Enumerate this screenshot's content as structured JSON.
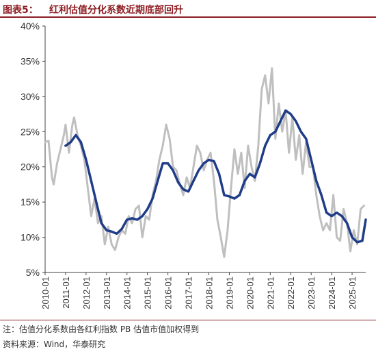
{
  "title": {
    "label": "图表5：",
    "text": "红利估值分化系数近期底部回升"
  },
  "footnotes": {
    "note": "注：估值分化系数由各红利指数 PB 估值市值加权得到",
    "source": "资料来源：Wind，华泰研究"
  },
  "chart_data": {
    "type": "line",
    "title": "红利估值分化系数近期底部回升",
    "xlabel": "",
    "ylabel": "",
    "ylim": [
      0.05,
      0.4
    ],
    "yticks": [
      "5%",
      "10%",
      "15%",
      "20%",
      "25%",
      "30%",
      "35%",
      "40%"
    ],
    "xticks": [
      "2010-01",
      "2011-01",
      "2012-01",
      "2013-01",
      "2014-01",
      "2015-01",
      "2016-01",
      "2017-01",
      "2018-01",
      "2019-01",
      "2020-01",
      "2021-01",
      "2022-01",
      "2023-01",
      "2024-01",
      "2025-01"
    ],
    "xrange": [
      "2010-01",
      "2025-09"
    ],
    "grid": false,
    "legend": "none",
    "series": [
      {
        "name": "",
        "color": "#bfbfbf",
        "points": [
          [
            "2010-01",
            0.235
          ],
          [
            "2010-03",
            0.237
          ],
          [
            "2010-05",
            0.185
          ],
          [
            "2010-06",
            0.175
          ],
          [
            "2010-08",
            0.205
          ],
          [
            "2010-10",
            0.225
          ],
          [
            "2010-12",
            0.245
          ],
          [
            "2011-01",
            0.26
          ],
          [
            "2011-03",
            0.22
          ],
          [
            "2011-05",
            0.26
          ],
          [
            "2011-06",
            0.27
          ],
          [
            "2011-08",
            0.245
          ],
          [
            "2011-10",
            0.23
          ],
          [
            "2011-12",
            0.21
          ],
          [
            "2012-02",
            0.17
          ],
          [
            "2012-04",
            0.13
          ],
          [
            "2012-06",
            0.155
          ],
          [
            "2012-08",
            0.12
          ],
          [
            "2012-10",
            0.13
          ],
          [
            "2012-12",
            0.09
          ],
          [
            "2013-02",
            0.115
          ],
          [
            "2013-04",
            0.09
          ],
          [
            "2013-06",
            0.082
          ],
          [
            "2013-08",
            0.1
          ],
          [
            "2013-10",
            0.11
          ],
          [
            "2013-12",
            0.105
          ],
          [
            "2014-02",
            0.13
          ],
          [
            "2014-04",
            0.12
          ],
          [
            "2014-06",
            0.14
          ],
          [
            "2014-08",
            0.145
          ],
          [
            "2014-10",
            0.1
          ],
          [
            "2014-12",
            0.13
          ],
          [
            "2015-02",
            0.125
          ],
          [
            "2015-04",
            0.16
          ],
          [
            "2015-06",
            0.18
          ],
          [
            "2015-08",
            0.21
          ],
          [
            "2015-10",
            0.23
          ],
          [
            "2015-12",
            0.26
          ],
          [
            "2016-02",
            0.24
          ],
          [
            "2016-04",
            0.2
          ],
          [
            "2016-06",
            0.195
          ],
          [
            "2016-08",
            0.175
          ],
          [
            "2016-10",
            0.16
          ],
          [
            "2016-12",
            0.185
          ],
          [
            "2017-02",
            0.17
          ],
          [
            "2017-04",
            0.2
          ],
          [
            "2017-06",
            0.23
          ],
          [
            "2017-08",
            0.22
          ],
          [
            "2017-10",
            0.195
          ],
          [
            "2017-12",
            0.21
          ],
          [
            "2018-02",
            0.22
          ],
          [
            "2018-04",
            0.18
          ],
          [
            "2018-06",
            0.125
          ],
          [
            "2018-08",
            0.1
          ],
          [
            "2018-10",
            0.072
          ],
          [
            "2018-12",
            0.11
          ],
          [
            "2019-02",
            0.17
          ],
          [
            "2019-04",
            0.225
          ],
          [
            "2019-06",
            0.19
          ],
          [
            "2019-08",
            0.22
          ],
          [
            "2019-10",
            0.17
          ],
          [
            "2019-12",
            0.23
          ],
          [
            "2020-02",
            0.2
          ],
          [
            "2020-04",
            0.18
          ],
          [
            "2020-06",
            0.23
          ],
          [
            "2020-08",
            0.31
          ],
          [
            "2020-10",
            0.33
          ],
          [
            "2020-12",
            0.29
          ],
          [
            "2021-02",
            0.34
          ],
          [
            "2021-04",
            0.24
          ],
          [
            "2021-06",
            0.29
          ],
          [
            "2021-08",
            0.25
          ],
          [
            "2021-10",
            0.28
          ],
          [
            "2021-12",
            0.22
          ],
          [
            "2022-02",
            0.27
          ],
          [
            "2022-04",
            0.21
          ],
          [
            "2022-06",
            0.245
          ],
          [
            "2022-08",
            0.19
          ],
          [
            "2022-10",
            0.235
          ],
          [
            "2022-12",
            0.2
          ],
          [
            "2023-02",
            0.2
          ],
          [
            "2023-04",
            0.16
          ],
          [
            "2023-06",
            0.13
          ],
          [
            "2023-08",
            0.11
          ],
          [
            "2023-10",
            0.12
          ],
          [
            "2023-12",
            0.11
          ],
          [
            "2024-02",
            0.16
          ],
          [
            "2024-04",
            0.1
          ],
          [
            "2024-06",
            0.095
          ],
          [
            "2024-08",
            0.14
          ],
          [
            "2024-10",
            0.12
          ],
          [
            "2024-12",
            0.08
          ],
          [
            "2025-02",
            0.11
          ],
          [
            "2025-04",
            0.09
          ],
          [
            "2025-06",
            0.14
          ],
          [
            "2025-08",
            0.145
          ]
        ]
      },
      {
        "name": "",
        "color": "#1f3c88",
        "points": [
          [
            "2011-01",
            0.23
          ],
          [
            "2011-04",
            0.235
          ],
          [
            "2011-07",
            0.245
          ],
          [
            "2011-10",
            0.235
          ],
          [
            "2012-01",
            0.21
          ],
          [
            "2012-04",
            0.18
          ],
          [
            "2012-07",
            0.15
          ],
          [
            "2012-10",
            0.12
          ],
          [
            "2013-01",
            0.11
          ],
          [
            "2013-04",
            0.108
          ],
          [
            "2013-07",
            0.105
          ],
          [
            "2013-10",
            0.112
          ],
          [
            "2014-01",
            0.125
          ],
          [
            "2014-04",
            0.127
          ],
          [
            "2014-07",
            0.125
          ],
          [
            "2014-10",
            0.13
          ],
          [
            "2015-01",
            0.14
          ],
          [
            "2015-04",
            0.155
          ],
          [
            "2015-07",
            0.18
          ],
          [
            "2015-10",
            0.205
          ],
          [
            "2016-01",
            0.205
          ],
          [
            "2016-04",
            0.195
          ],
          [
            "2016-07",
            0.178
          ],
          [
            "2016-10",
            0.168
          ],
          [
            "2017-01",
            0.165
          ],
          [
            "2017-04",
            0.18
          ],
          [
            "2017-07",
            0.195
          ],
          [
            "2017-10",
            0.205
          ],
          [
            "2018-01",
            0.21
          ],
          [
            "2018-04",
            0.208
          ],
          [
            "2018-07",
            0.19
          ],
          [
            "2018-10",
            0.16
          ],
          [
            "2019-01",
            0.158
          ],
          [
            "2019-04",
            0.155
          ],
          [
            "2019-07",
            0.16
          ],
          [
            "2019-10",
            0.18
          ],
          [
            "2020-01",
            0.19
          ],
          [
            "2020-04",
            0.185
          ],
          [
            "2020-07",
            0.205
          ],
          [
            "2020-10",
            0.23
          ],
          [
            "2021-01",
            0.245
          ],
          [
            "2021-04",
            0.25
          ],
          [
            "2021-07",
            0.265
          ],
          [
            "2021-10",
            0.28
          ],
          [
            "2022-01",
            0.275
          ],
          [
            "2022-04",
            0.265
          ],
          [
            "2022-07",
            0.25
          ],
          [
            "2022-10",
            0.24
          ],
          [
            "2023-01",
            0.21
          ],
          [
            "2023-04",
            0.18
          ],
          [
            "2023-07",
            0.16
          ],
          [
            "2023-10",
            0.135
          ],
          [
            "2024-01",
            0.13
          ],
          [
            "2024-04",
            0.135
          ],
          [
            "2024-07",
            0.13
          ],
          [
            "2024-10",
            0.12
          ],
          [
            "2025-01",
            0.1
          ],
          [
            "2025-04",
            0.093
          ],
          [
            "2025-07",
            0.095
          ],
          [
            "2025-09",
            0.125
          ]
        ]
      }
    ]
  }
}
